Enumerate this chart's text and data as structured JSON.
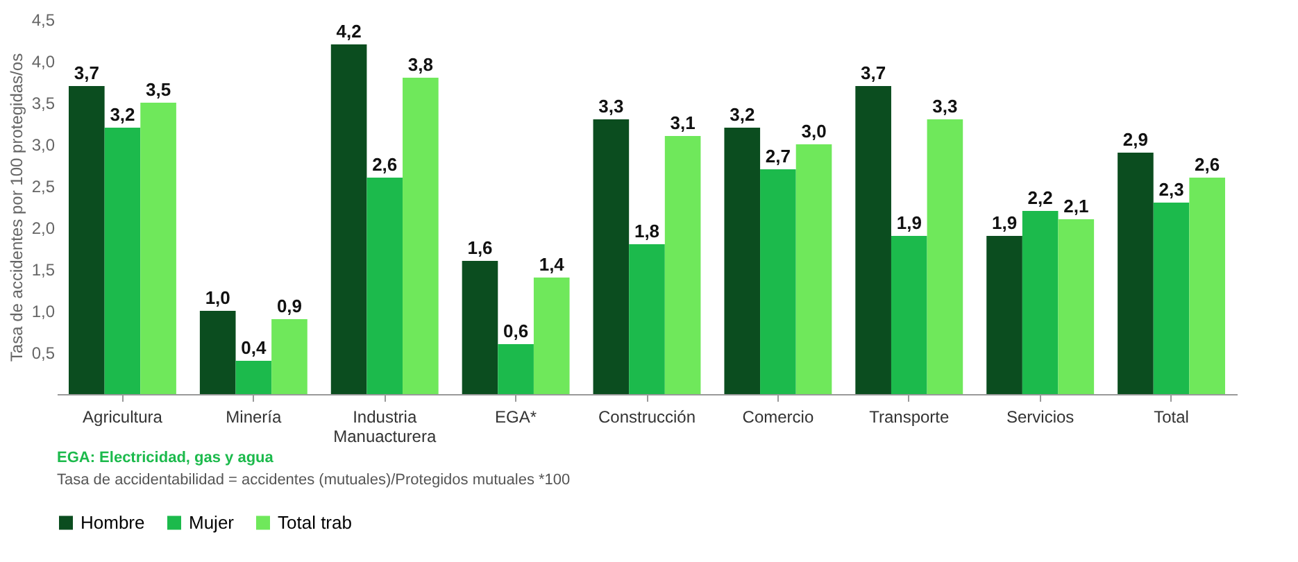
{
  "chart_data": {
    "type": "bar",
    "ylabel": "Tasa de accidentes por 100 protegidas/os",
    "categories": [
      "Agricultura",
      "Minería",
      "Industria Manuacturera",
      "EGA*",
      "Construcción",
      "Comercio",
      "Transporte",
      "Servicios",
      "Total"
    ],
    "series": [
      {
        "name": "Hombre",
        "color": "#0b4d1f",
        "values": [
          3.7,
          1.0,
          4.2,
          1.6,
          3.3,
          3.2,
          3.7,
          1.9,
          2.9
        ],
        "value_labels": [
          "3,7",
          "1,0",
          "4,2",
          "1,6",
          "3,3",
          "3,2",
          "3,7",
          "1,9",
          "2,9"
        ]
      },
      {
        "name": "Mujer",
        "color": "#1cba4c",
        "values": [
          3.2,
          0.4,
          2.6,
          0.6,
          1.8,
          2.7,
          1.9,
          2.2,
          2.3
        ],
        "value_labels": [
          "3,2",
          "0,4",
          "2,6",
          "0,6",
          "1,8",
          "2,7",
          "1,9",
          "2,2",
          "2,3"
        ]
      },
      {
        "name": "Total trab",
        "color": "#6fe85b",
        "values": [
          3.5,
          0.9,
          3.8,
          1.4,
          3.1,
          3.0,
          3.3,
          2.1,
          2.6
        ],
        "value_labels": [
          "3,5",
          "0,9",
          "3,8",
          "1,4",
          "3,1",
          "3,0",
          "3,3",
          "2,1",
          "2,6"
        ]
      }
    ],
    "ylim": [
      0,
      4.5
    ],
    "yticks": [
      {
        "value": 0.5,
        "label": "0,5"
      },
      {
        "value": 1.0,
        "label": "1,0"
      },
      {
        "value": 1.5,
        "label": "1,5"
      },
      {
        "value": 2.0,
        "label": "2,0"
      },
      {
        "value": 2.5,
        "label": "2,5"
      },
      {
        "value": 3.0,
        "label": "3,0"
      },
      {
        "value": 3.5,
        "label": "3,5"
      },
      {
        "value": 4.0,
        "label": "4,0"
      },
      {
        "value": 4.5,
        "label": "4,5"
      }
    ],
    "grid": false,
    "legend": "bottom",
    "annotations": [
      "EGA: Electricidad, gas y agua",
      "Tasa de accidentabilidad = accidentes (mutuales)/Protegidos mutuales *100"
    ]
  }
}
